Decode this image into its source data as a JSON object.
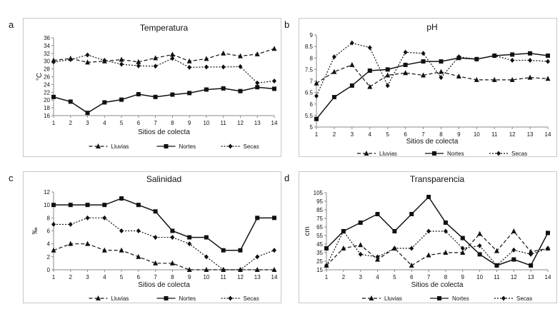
{
  "chart_data": [
    {
      "panel": "a",
      "type": "line",
      "title": "Temperatura",
      "xlabel": "Sitios de colecta",
      "ylabel": "°C",
      "ylim": [
        16,
        36
      ],
      "yticks": [
        16,
        18,
        20,
        22,
        24,
        26,
        28,
        30,
        32,
        34,
        36
      ],
      "x": [
        1,
        2,
        3,
        4,
        5,
        6,
        7,
        8,
        9,
        10,
        11,
        12,
        13,
        14
      ],
      "series": [
        {
          "name": "Lluvias",
          "style": "dash-triangle",
          "values": [
            30.2,
            30.7,
            29.7,
            30.0,
            30.4,
            29.8,
            30.8,
            31.7,
            30.0,
            30.6,
            32.0,
            31.3,
            31.8,
            33.2
          ]
        },
        {
          "name": "Nortes",
          "style": "solid-square",
          "values": [
            20.8,
            19.6,
            16.7,
            19.4,
            20.1,
            21.5,
            20.8,
            21.4,
            21.8,
            22.7,
            23.0,
            22.3,
            23.3,
            22.9
          ]
        },
        {
          "name": "Secas",
          "style": "dot-diamond",
          "values": [
            29.8,
            30.4,
            31.6,
            30.2,
            29.2,
            28.8,
            28.7,
            30.7,
            28.4,
            28.5,
            28.5,
            28.6,
            24.4,
            24.9
          ]
        }
      ]
    },
    {
      "panel": "b",
      "type": "line",
      "title": "pH",
      "xlabel": "Sitios de colecta",
      "ylabel": "",
      "ylim": [
        5,
        9
      ],
      "yticks": [
        5,
        5.5,
        6,
        6.5,
        7,
        7.5,
        8,
        8.5,
        9
      ],
      "x": [
        1,
        2,
        3,
        4,
        5,
        6,
        7,
        8,
        9,
        10,
        11,
        12,
        13,
        14
      ],
      "series": [
        {
          "name": "Lluvias",
          "style": "dash-triangle",
          "values": [
            6.9,
            7.4,
            7.7,
            6.75,
            7.25,
            7.35,
            7.25,
            7.4,
            7.2,
            7.05,
            7.05,
            7.05,
            7.15,
            7.1
          ]
        },
        {
          "name": "Nortes",
          "style": "solid-square",
          "values": [
            5.35,
            6.3,
            6.8,
            7.45,
            7.5,
            7.7,
            7.85,
            7.85,
            8.0,
            7.95,
            8.1,
            8.15,
            8.2,
            8.1
          ]
        },
        {
          "name": "Secas",
          "style": "dot-diamond",
          "values": [
            6.35,
            8.05,
            8.65,
            8.45,
            6.8,
            8.25,
            8.2,
            7.15,
            8.05,
            7.95,
            8.1,
            7.9,
            7.9,
            7.85
          ]
        }
      ]
    },
    {
      "panel": "c",
      "type": "line",
      "title": "Salinidad",
      "xlabel": "Sitios de colecta",
      "ylabel": "‰",
      "ylim": [
        0,
        12
      ],
      "yticks": [
        0,
        2,
        4,
        6,
        8,
        10,
        12
      ],
      "x": [
        1,
        2,
        3,
        4,
        5,
        6,
        7,
        8,
        9,
        10,
        11,
        12,
        13,
        14
      ],
      "series": [
        {
          "name": "Lluvias",
          "style": "dash-triangle",
          "values": [
            3,
            4,
            4,
            3,
            3,
            2,
            1,
            1,
            0,
            0,
            0,
            0,
            0,
            0
          ]
        },
        {
          "name": "Nortes",
          "style": "solid-square",
          "values": [
            10,
            10,
            10,
            10,
            11,
            10,
            9,
            6,
            5,
            5,
            3,
            3,
            8,
            8
          ]
        },
        {
          "name": "Secas",
          "style": "dot-diamond",
          "values": [
            7,
            7,
            8,
            8,
            6,
            6,
            5,
            5,
            4,
            2,
            0,
            0,
            2,
            3
          ]
        }
      ]
    },
    {
      "panel": "d",
      "type": "line",
      "title": "Transparencia",
      "xlabel": "Sitios de colecta",
      "ylabel": "cm",
      "ylim": [
        15,
        105
      ],
      "yticks": [
        15,
        25,
        35,
        45,
        55,
        65,
        75,
        85,
        95,
        105
      ],
      "x": [
        1,
        2,
        3,
        4,
        5,
        6,
        7,
        8,
        9,
        10,
        11,
        12,
        13,
        14
      ],
      "series": [
        {
          "name": "Lluvias",
          "style": "dash-triangle",
          "values": [
            20,
            40,
            44,
            27,
            40,
            20,
            32,
            35,
            35,
            57,
            37,
            60,
            36,
            40
          ]
        },
        {
          "name": "Nortes",
          "style": "solid-square",
          "values": [
            40,
            60,
            70,
            80,
            60,
            80,
            100,
            70,
            52,
            33,
            20,
            27,
            20,
            58
          ]
        },
        {
          "name": "Secas",
          "style": "dot-diamond",
          "values": [
            20,
            60,
            33,
            30,
            40,
            40,
            60,
            60,
            40,
            43,
            20,
            38,
            33,
            40
          ]
        }
      ]
    }
  ]
}
